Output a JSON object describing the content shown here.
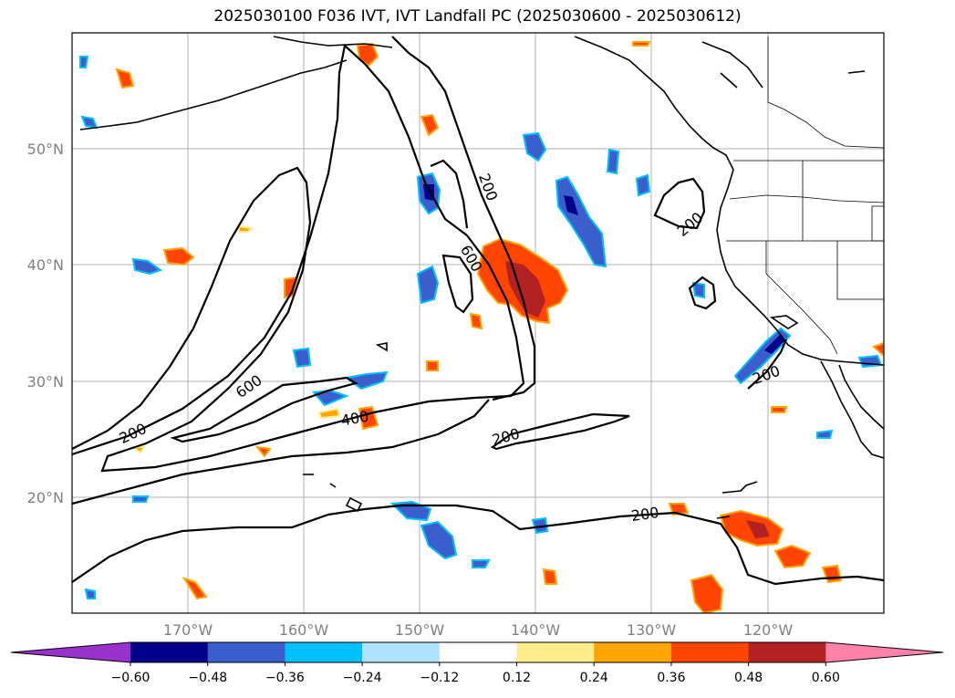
{
  "title": "2025030100 F036 IVT, IVT Landfall PC (2025030600 - 2025030612)",
  "lat_labels": [
    "50°N",
    "40°N",
    "30°N",
    "20°N"
  ],
  "lon_labels": [
    "170°W",
    "160°W",
    "150°W",
    "140°W",
    "130°W",
    "120°W"
  ],
  "contour_labels": [
    "200",
    "200",
    "200",
    "200",
    "200",
    "200",
    "600",
    "600",
    "400"
  ],
  "colorbar": {
    "ticks": [
      "−0.60",
      "−0.48",
      "−0.36",
      "−0.24",
      "−0.12",
      "0.12",
      "0.24",
      "0.36",
      "0.48",
      "0.60"
    ],
    "colors": [
      "#9932cc",
      "#00008b",
      "#3a5fcd",
      "#00bfff",
      "#b0e2ff",
      "#ffffff",
      "#ffec8b",
      "#ffa500",
      "#ff4500",
      "#b22222",
      "#ff82ab"
    ]
  },
  "colors": {
    "strong_positive": "#b22222",
    "positive": "#ff4500",
    "weak_positive": "#ffa500",
    "faint_positive": "#ffec8b",
    "strong_negative": "#00008b",
    "negative": "#3a5fcd",
    "weak_negative": "#00bfff",
    "faint_negative": "#b0e2ff"
  }
}
